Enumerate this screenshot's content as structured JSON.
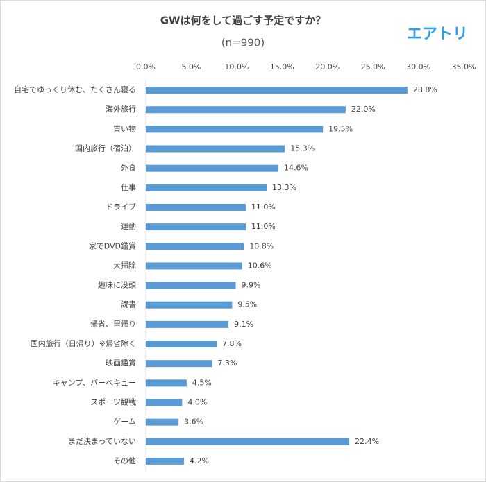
{
  "chart_data": {
    "type": "hbar",
    "title": "GWは何をして過ごす予定ですか？",
    "subtitle": "(n=990)",
    "logo_text": "エアトリ",
    "categories": [
      "自宅でゆっくり休む、たくさん寝る",
      "海外旅行",
      "買い物",
      "国内旅行（宿泊）",
      "外食",
      "仕事",
      "ドライブ",
      "運動",
      "家でDVD鑑賞",
      "大掃除",
      "趣味に没頭",
      "読書",
      "帰省、里帰り",
      "国内旅行（日帰り）※帰省除く",
      "映画鑑賞",
      "キャンプ、バーベキュー",
      "スポーツ観戦",
      "ゲーム",
      "まだ決まっていない",
      "その他"
    ],
    "values": [
      28.8,
      22.0,
      19.5,
      15.3,
      14.6,
      13.3,
      11.0,
      11.0,
      10.8,
      10.6,
      9.9,
      9.5,
      9.1,
      7.8,
      7.3,
      4.5,
      4.0,
      3.6,
      22.4,
      4.2
    ],
    "value_labels": [
      "28.8%",
      "22.0%",
      "19.5%",
      "15.3%",
      "14.6%",
      "13.3%",
      "11.0%",
      "11.0%",
      "10.8%",
      "10.6%",
      "9.9%",
      "9.5%",
      "9.1%",
      "7.8%",
      "7.3%",
      "4.5%",
      "4.0%",
      "3.6%",
      "22.4%",
      "4.2%"
    ],
    "color": "#5b9bd5",
    "xlim": [
      0,
      35
    ],
    "xticks": [
      {
        "value": 0,
        "label": "0.0%"
      },
      {
        "value": 5,
        "label": "5.0%"
      },
      {
        "value": 10,
        "label": "10.0%"
      },
      {
        "value": 15,
        "label": "15.0%"
      },
      {
        "value": 20,
        "label": "20.0%"
      },
      {
        "value": 25,
        "label": "25.0%"
      },
      {
        "value": 30,
        "label": "30.0%"
      },
      {
        "value": 35,
        "label": "35.0%"
      }
    ],
    "grid": false
  }
}
